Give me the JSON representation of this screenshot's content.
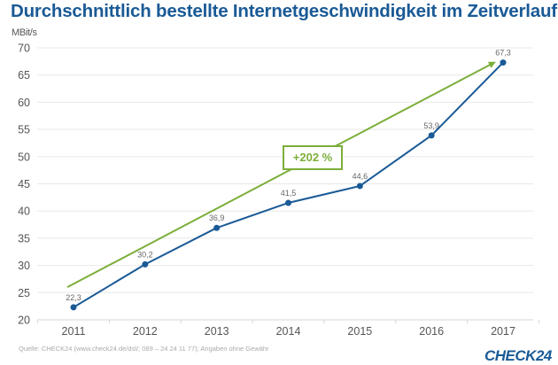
{
  "chart_data": {
    "type": "line",
    "title": "Durchschnittlich bestellte Internetgeschwindigkeit im Zeitverlauf",
    "xlabel": "",
    "ylabel": "MBit/s",
    "categories": [
      "2011",
      "2012",
      "2013",
      "2014",
      "2015",
      "2016",
      "2017"
    ],
    "series": [
      {
        "name": "Durchschnittlich bestellte Internetgeschwindigkeit",
        "color": "#1a5a96",
        "values": [
          22.3,
          30.2,
          36.9,
          41.5,
          44.6,
          53.9,
          67.3
        ],
        "labels": [
          "22,3",
          "30,2",
          "36,9",
          "41,5",
          "44,6",
          "53,9",
          "67,3"
        ]
      }
    ],
    "yticks": [
      "20",
      "25",
      "30",
      "35",
      "40",
      "45",
      "50",
      "55",
      "60",
      "65",
      "70"
    ],
    "ylim": [
      20,
      70
    ],
    "grid": true,
    "annotation": {
      "type": "trend-arrow",
      "color": "#7cae3a",
      "label": "+202 %",
      "from": {
        "x": "2011",
        "y": 26
      },
      "to": {
        "x": "2017",
        "y": 67.3
      }
    }
  },
  "footer": {
    "source": "Quelle: CHECK24 (www.check24.de/dsl/; 089 – 24 24 11 77); Angaben ohne Gewähr",
    "logo": "CHECK24"
  }
}
